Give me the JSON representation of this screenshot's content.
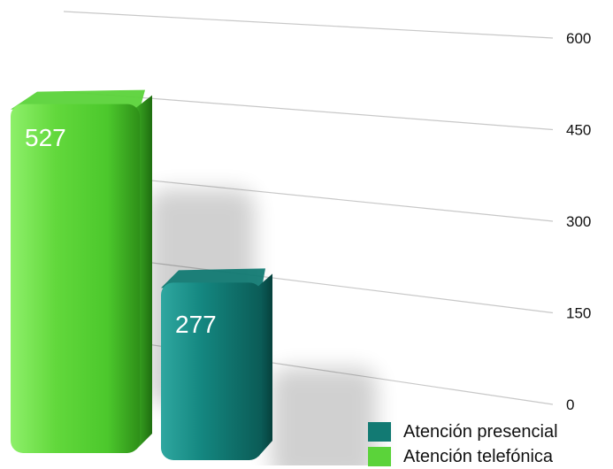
{
  "chart_data": {
    "type": "bar",
    "categories": [
      ""
    ],
    "series": [
      {
        "name": "Atención telefónica",
        "values": [
          527
        ],
        "color": "#5bd33a"
      },
      {
        "name": "Atención presencial",
        "values": [
          277
        ],
        "color": "#127a73"
      }
    ],
    "ylim": [
      0,
      600
    ],
    "yticks": [
      "0",
      "150",
      "300",
      "450",
      "600"
    ],
    "grid": true,
    "legend_position": "bottom-right"
  },
  "legend": {
    "items": [
      {
        "label": "Atención presencial",
        "color": "#127a73"
      },
      {
        "label": "Atención telefónica",
        "color": "#5bd33a"
      }
    ]
  }
}
